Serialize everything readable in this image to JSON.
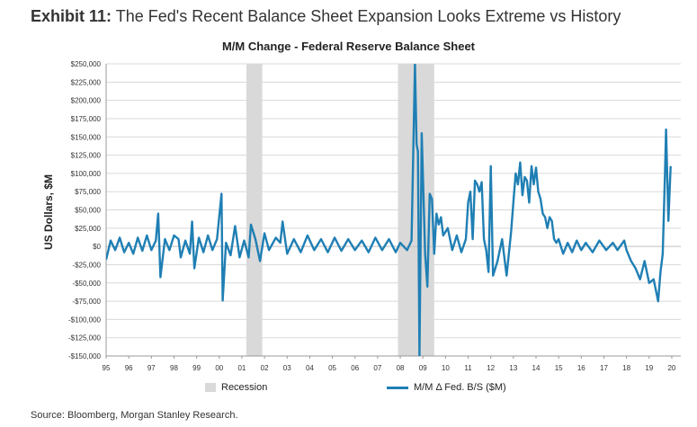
{
  "exhibit": {
    "number": "Exhibit 11:",
    "title": "The Fed's Recent Balance Sheet Expansion Looks Extreme vs History"
  },
  "source": "Source: Bloomberg, Morgan Stanley Research.",
  "colors": {
    "series": "#1f7fb4",
    "recession": "#d9d9d9",
    "grid": "#d9d9d9"
  },
  "chart_data": {
    "type": "line",
    "title": "M/M Change - Federal Reserve Balance Sheet",
    "ylabel": "US Dollars, $M",
    "xlabel": "",
    "ylim": [
      -150000,
      250000
    ],
    "xlim": [
      1995,
      2020.4
    ],
    "yticks": [
      250000,
      225000,
      200000,
      175000,
      150000,
      125000,
      100000,
      75000,
      50000,
      25000,
      0,
      -25000,
      -50000,
      -75000,
      -100000,
      -125000,
      -150000
    ],
    "ytick_labels": [
      "$250,000",
      "$225,000",
      "$200,000",
      "$175,000",
      "$150,000",
      "$125,000",
      "$100,000",
      "$75,000",
      "$50,000",
      "$25,000",
      "$0",
      "-$25,000",
      "-$50,000",
      "-$75,000",
      "-$100,000",
      "-$125,000",
      "-$150,000"
    ],
    "xtick_labels": [
      "95",
      "96",
      "97",
      "98",
      "99",
      "00",
      "01",
      "02",
      "03",
      "04",
      "05",
      "06",
      "07",
      "08",
      "09",
      "10",
      "11",
      "12",
      "13",
      "14",
      "15",
      "16",
      "17",
      "18",
      "19",
      "20"
    ],
    "grid": "horizontal",
    "legend": {
      "position": "bottom",
      "entries": [
        "Recession",
        "M/M Δ Fed. B/S ($M)"
      ]
    },
    "recessions": [
      {
        "start": 2001.2,
        "end": 2001.9
      },
      {
        "start": 2007.9,
        "end": 2009.5
      }
    ],
    "series": [
      {
        "name": "M/M Δ Fed. B/S ($M)",
        "points": [
          [
            1995.0,
            -18000
          ],
          [
            1995.2,
            8000
          ],
          [
            1995.4,
            -5000
          ],
          [
            1995.6,
            12000
          ],
          [
            1995.8,
            -8000
          ],
          [
            1996.0,
            5000
          ],
          [
            1996.2,
            -10000
          ],
          [
            1996.4,
            12000
          ],
          [
            1996.6,
            -6000
          ],
          [
            1996.8,
            15000
          ],
          [
            1997.0,
            -5000
          ],
          [
            1997.2,
            8000
          ],
          [
            1997.3,
            45000
          ],
          [
            1997.4,
            -42000
          ],
          [
            1997.6,
            10000
          ],
          [
            1997.8,
            -5000
          ],
          [
            1998.0,
            15000
          ],
          [
            1998.2,
            10000
          ],
          [
            1998.3,
            -15000
          ],
          [
            1998.5,
            8000
          ],
          [
            1998.7,
            -10000
          ],
          [
            1998.8,
            34000
          ],
          [
            1998.9,
            -30000
          ],
          [
            1999.1,
            12000
          ],
          [
            1999.3,
            -8000
          ],
          [
            1999.5,
            15000
          ],
          [
            1999.7,
            -5000
          ],
          [
            1999.9,
            10000
          ],
          [
            2000.1,
            72000
          ],
          [
            2000.15,
            -74000
          ],
          [
            2000.3,
            5000
          ],
          [
            2000.5,
            -12000
          ],
          [
            2000.7,
            28000
          ],
          [
            2000.9,
            -15000
          ],
          [
            2001.1,
            8000
          ],
          [
            2001.3,
            -15000
          ],
          [
            2001.4,
            30000
          ],
          [
            2001.6,
            10000
          ],
          [
            2001.8,
            -20000
          ],
          [
            2002.0,
            18000
          ],
          [
            2002.2,
            -5000
          ],
          [
            2002.5,
            12000
          ],
          [
            2002.7,
            5000
          ],
          [
            2002.8,
            34000
          ],
          [
            2003.0,
            -10000
          ],
          [
            2003.3,
            10000
          ],
          [
            2003.6,
            -8000
          ],
          [
            2003.9,
            15000
          ],
          [
            2004.2,
            -5000
          ],
          [
            2004.5,
            10000
          ],
          [
            2004.8,
            -8000
          ],
          [
            2005.1,
            12000
          ],
          [
            2005.4,
            -6000
          ],
          [
            2005.7,
            10000
          ],
          [
            2006.0,
            -5000
          ],
          [
            2006.3,
            8000
          ],
          [
            2006.6,
            -8000
          ],
          [
            2006.9,
            12000
          ],
          [
            2007.2,
            -5000
          ],
          [
            2007.5,
            10000
          ],
          [
            2007.8,
            -8000
          ],
          [
            2008.0,
            5000
          ],
          [
            2008.3,
            -5000
          ],
          [
            2008.5,
            8000
          ],
          [
            2008.65,
            250000
          ],
          [
            2008.72,
            140000
          ],
          [
            2008.78,
            130000
          ],
          [
            2008.85,
            -150000
          ],
          [
            2008.95,
            155000
          ],
          [
            2009.1,
            -10000
          ],
          [
            2009.2,
            -55000
          ],
          [
            2009.3,
            72000
          ],
          [
            2009.4,
            65000
          ],
          [
            2009.5,
            -10000
          ],
          [
            2009.6,
            45000
          ],
          [
            2009.7,
            30000
          ],
          [
            2009.8,
            40000
          ],
          [
            2009.9,
            15000
          ],
          [
            2010.1,
            25000
          ],
          [
            2010.3,
            -5000
          ],
          [
            2010.5,
            15000
          ],
          [
            2010.7,
            -8000
          ],
          [
            2010.9,
            10000
          ],
          [
            2011.0,
            60000
          ],
          [
            2011.1,
            75000
          ],
          [
            2011.2,
            10000
          ],
          [
            2011.3,
            90000
          ],
          [
            2011.4,
            85000
          ],
          [
            2011.5,
            75000
          ],
          [
            2011.6,
            88000
          ],
          [
            2011.7,
            10000
          ],
          [
            2011.8,
            -5000
          ],
          [
            2011.9,
            -35000
          ],
          [
            2012.0,
            110000
          ],
          [
            2012.1,
            -40000
          ],
          [
            2012.3,
            -20000
          ],
          [
            2012.5,
            10000
          ],
          [
            2012.7,
            -40000
          ],
          [
            2012.9,
            20000
          ],
          [
            2013.0,
            60000
          ],
          [
            2013.1,
            100000
          ],
          [
            2013.2,
            85000
          ],
          [
            2013.3,
            115000
          ],
          [
            2013.4,
            70000
          ],
          [
            2013.5,
            95000
          ],
          [
            2013.6,
            90000
          ],
          [
            2013.7,
            60000
          ],
          [
            2013.8,
            110000
          ],
          [
            2013.9,
            85000
          ],
          [
            2014.0,
            108000
          ],
          [
            2014.1,
            75000
          ],
          [
            2014.2,
            65000
          ],
          [
            2014.3,
            45000
          ],
          [
            2014.4,
            40000
          ],
          [
            2014.5,
            25000
          ],
          [
            2014.6,
            40000
          ],
          [
            2014.7,
            35000
          ],
          [
            2014.8,
            10000
          ],
          [
            2014.9,
            5000
          ],
          [
            2015.0,
            10000
          ],
          [
            2015.2,
            -10000
          ],
          [
            2015.4,
            5000
          ],
          [
            2015.6,
            -8000
          ],
          [
            2015.8,
            8000
          ],
          [
            2016.0,
            -5000
          ],
          [
            2016.2,
            5000
          ],
          [
            2016.5,
            -8000
          ],
          [
            2016.8,
            8000
          ],
          [
            2017.1,
            -5000
          ],
          [
            2017.4,
            5000
          ],
          [
            2017.6,
            -5000
          ],
          [
            2017.9,
            8000
          ],
          [
            2018.0,
            -5000
          ],
          [
            2018.2,
            -20000
          ],
          [
            2018.4,
            -30000
          ],
          [
            2018.6,
            -45000
          ],
          [
            2018.8,
            -20000
          ],
          [
            2019.0,
            -50000
          ],
          [
            2019.2,
            -45000
          ],
          [
            2019.4,
            -75000
          ],
          [
            2019.5,
            -35000
          ],
          [
            2019.6,
            -10000
          ],
          [
            2019.7,
            100000
          ],
          [
            2019.75,
            160000
          ],
          [
            2019.85,
            35000
          ],
          [
            2019.95,
            110000
          ]
        ]
      }
    ]
  }
}
